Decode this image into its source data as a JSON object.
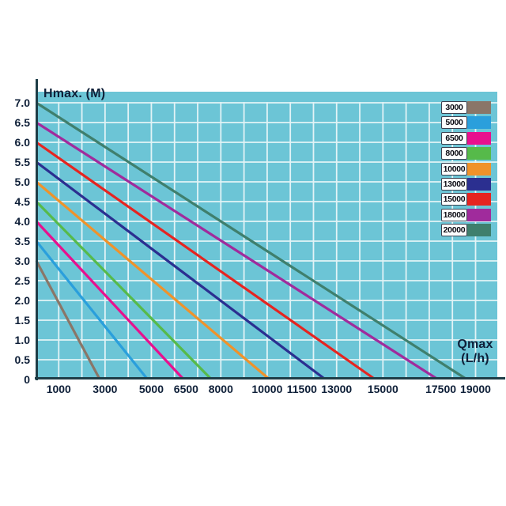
{
  "labels": {
    "y_axis_title": "Hmax. (M)",
    "x_axis_title_line1": "Qmax",
    "x_axis_title_line2": "(L/h)"
  },
  "colors": {
    "plot_background": "#6cc5d6",
    "grid_line": "#e2f3f6",
    "axis_line": "#1e3d47",
    "tick_text": "#0e1f38",
    "legend_box_background": "#fdfeff",
    "legend_box_border": "#3c4150"
  },
  "chart_data": {
    "type": "line",
    "title": "",
    "xlabel": "Qmax (L/h)",
    "ylabel": "Hmax. (M)",
    "xlim": [
      0,
      19950
    ],
    "ylim": [
      0,
      7.3
    ],
    "grid": true,
    "x_grid_step": 1000,
    "y_grid_step": 0.5,
    "legend_position": "top-right",
    "x_ticks": [
      1000,
      3000,
      5000,
      6500,
      8000,
      10000,
      11500,
      13000,
      15000,
      17500,
      19000
    ],
    "y_ticks": [
      "7.0",
      "6.5",
      "6.0",
      "5.5",
      "5.0",
      "4.5",
      "4.0",
      "3.5",
      "3.0",
      "2.5",
      "2.0",
      "1.5",
      "1.0",
      "0.5",
      "0"
    ],
    "series_note": "Each pump model curve runs straight from its max head (Hmax, M) at Q=0 down to its max flow (Qmax, L/h) at H=0",
    "series": [
      {
        "name": "3000",
        "color": "#8a7668",
        "hmax_m": 3.0,
        "points": [
          [
            0,
            3.0
          ],
          [
            2750,
            0
          ]
        ]
      },
      {
        "name": "5000",
        "color": "#2a9fdc",
        "hmax_m": 3.5,
        "points": [
          [
            0,
            3.5
          ],
          [
            4800,
            0
          ]
        ]
      },
      {
        "name": "6500",
        "color": "#e8108e",
        "hmax_m": 4.0,
        "points": [
          [
            0,
            4.0
          ],
          [
            6350,
            0
          ]
        ]
      },
      {
        "name": "8000",
        "color": "#56ba4a",
        "hmax_m": 4.5,
        "points": [
          [
            0,
            4.5
          ],
          [
            7550,
            0
          ]
        ]
      },
      {
        "name": "10000",
        "color": "#f0922a",
        "hmax_m": 5.0,
        "points": [
          [
            0,
            5.0
          ],
          [
            10050,
            0
          ]
        ]
      },
      {
        "name": "13000",
        "color": "#2b2f90",
        "hmax_m": 5.5,
        "points": [
          [
            0,
            5.5
          ],
          [
            12450,
            0
          ]
        ]
      },
      {
        "name": "15000",
        "color": "#e62420",
        "hmax_m": 6.0,
        "points": [
          [
            0,
            6.0
          ],
          [
            14600,
            0
          ]
        ]
      },
      {
        "name": "18000",
        "color": "#a02b9c",
        "hmax_m": 6.5,
        "points": [
          [
            0,
            6.5
          ],
          [
            17300,
            0
          ]
        ]
      },
      {
        "name": "20000",
        "color": "#3f7f6d",
        "hmax_m": 7.0,
        "points": [
          [
            0,
            7.0
          ],
          [
            18550,
            0
          ]
        ]
      }
    ]
  }
}
